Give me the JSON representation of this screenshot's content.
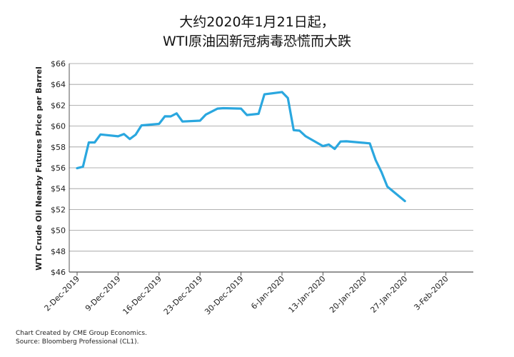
{
  "chart_data": {
    "type": "line",
    "title_lines": [
      "大约2020年1月21日起，",
      "WTI原油因新冠病毒恐慌而大跌"
    ],
    "ylabel": "WTI Crude Oil Nearby Futures Price per Barrel",
    "xlabel": "",
    "ylim": [
      46,
      66
    ],
    "y_ticks": [
      "$66",
      "$64",
      "$62",
      "$60",
      "$58",
      "$56",
      "$54",
      "$52",
      "$50",
      "$48",
      "$46"
    ],
    "x_ticks": [
      "2-Dec-2019",
      "9-Dec-2019",
      "16-Dec-2019",
      "23-Dec-2019",
      "30-Dec-2019",
      "6-Jan-2020",
      "13-Jan-2020",
      "20-Jan-2020",
      "27-Jan-2020",
      "3-Feb-2020"
    ],
    "grid": true,
    "line_color": "#2aa7df",
    "series": [
      {
        "x": [
          "2019-12-02",
          "2019-12-03",
          "2019-12-04",
          "2019-12-05",
          "2019-12-06",
          "2019-12-09",
          "2019-12-10",
          "2019-12-11",
          "2019-12-12",
          "2019-12-13",
          "2019-12-16",
          "2019-12-17",
          "2019-12-18",
          "2019-12-19",
          "2019-12-20",
          "2019-12-23",
          "2019-12-24",
          "2019-12-26",
          "2019-12-27",
          "2019-12-30",
          "2019-12-31",
          "2020-01-02",
          "2020-01-03",
          "2020-01-06",
          "2020-01-07",
          "2020-01-08",
          "2020-01-09",
          "2020-01-10",
          "2020-01-13",
          "2020-01-14",
          "2020-01-15",
          "2020-01-16",
          "2020-01-17",
          "2020-01-21",
          "2020-01-22",
          "2020-01-23",
          "2020-01-24",
          "2020-01-27"
        ],
        "values": [
          55.96,
          56.1,
          58.43,
          58.43,
          59.2,
          59.02,
          59.24,
          58.76,
          59.18,
          60.07,
          60.21,
          60.94,
          60.93,
          61.22,
          60.44,
          60.52,
          61.11,
          61.68,
          61.72,
          61.68,
          61.06,
          61.18,
          63.05,
          63.27,
          62.7,
          59.61,
          59.56,
          59.04,
          58.08,
          58.23,
          57.81,
          58.52,
          58.54,
          58.34,
          56.74,
          55.59,
          54.19,
          52.81
        ]
      }
    ]
  },
  "footer": {
    "line1": "Chart Created by CME Group Economics.",
    "line2": "Source:  Bloomberg Professional (CL1)."
  }
}
